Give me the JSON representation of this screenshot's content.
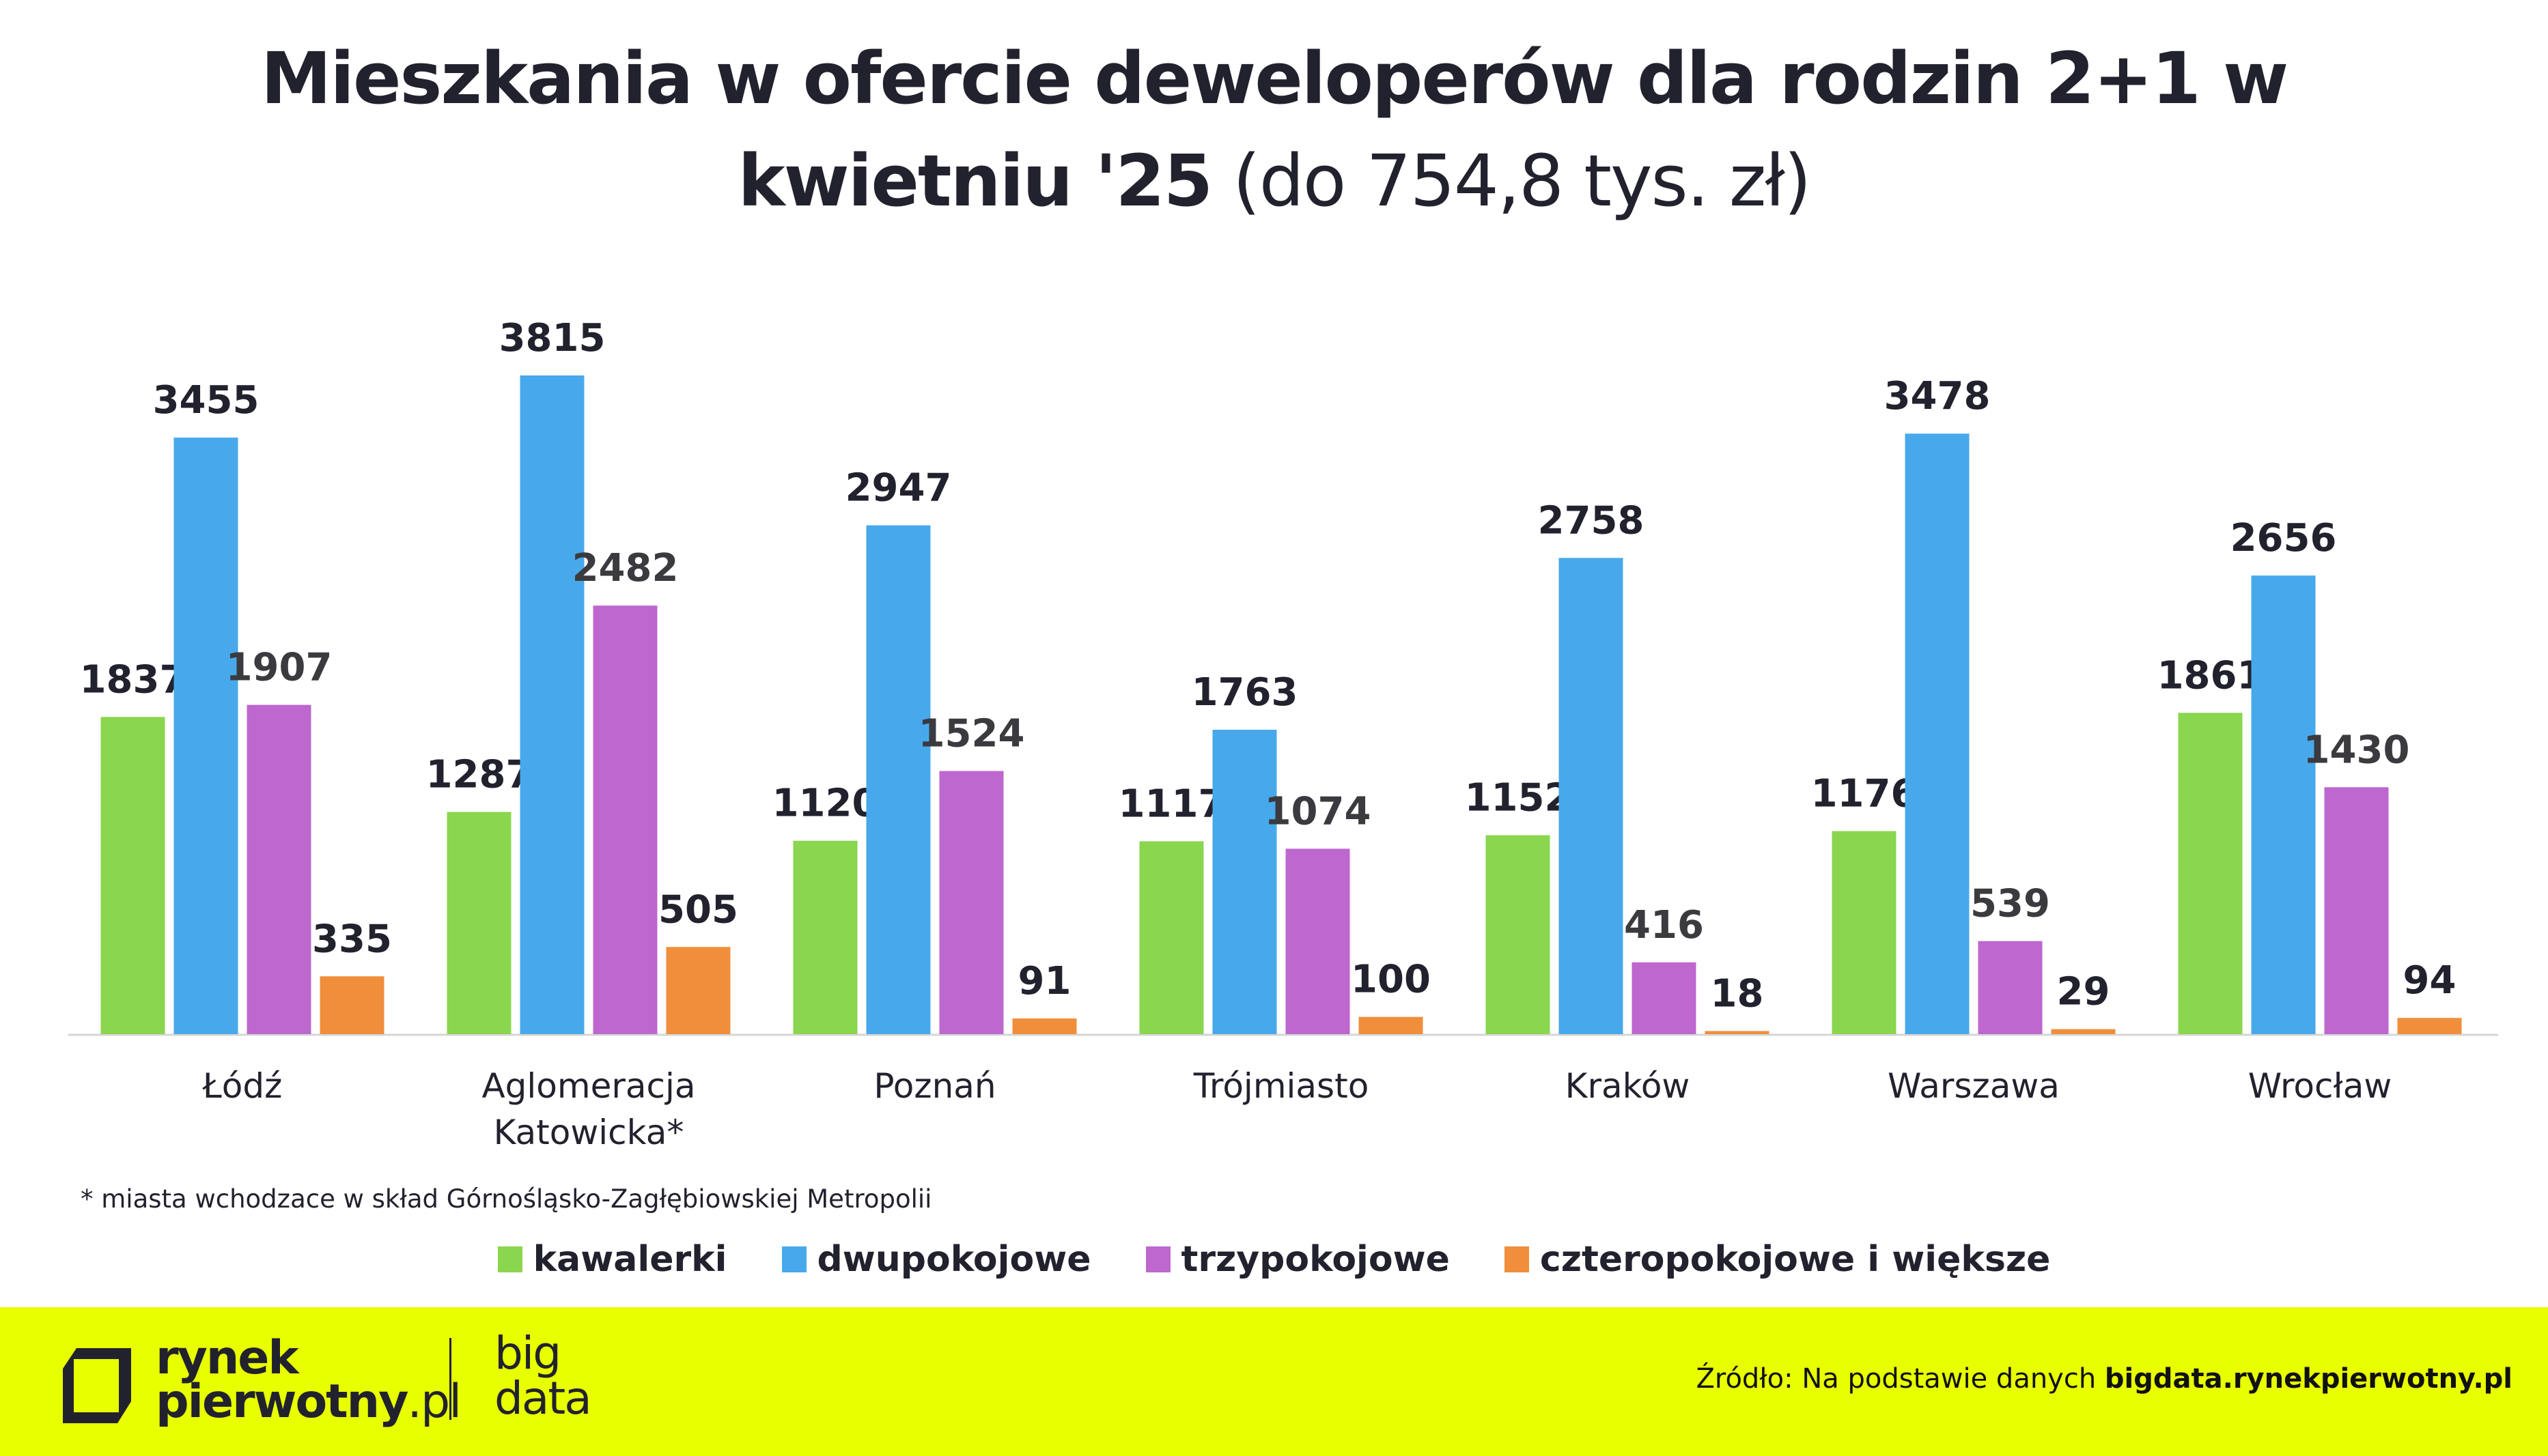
{
  "header": {
    "title_bold": "Mieszkania w ofercie deweloperów dla rodzin 2+1 w",
    "title_bold_2": "kwietniu '25",
    "title_normal": " (do 754,8  tys. zł)"
  },
  "chart_data": {
    "type": "bar",
    "title": "Mieszkania w ofercie deweloperów dla rodzin 2+1 w kwietniu '25 (do 754,8  tys. zł)",
    "xlabel": "",
    "ylabel": "",
    "ylim": [
      0,
      3815
    ],
    "grid": false,
    "legend_position": "bottom",
    "categories": [
      "Łódź",
      [
        "Aglomeracja",
        "Katowicka*"
      ],
      "Poznań",
      "Trójmiasto",
      "Kraków",
      "Warszawa",
      "Wrocław"
    ],
    "series": [
      {
        "name": "kawalerki",
        "color": "#8ad64e",
        "values": [
          1837,
          1287,
          1120,
          1117,
          1152,
          1176,
          1861
        ]
      },
      {
        "name": "dwupokojowe",
        "color": "#47a9eb",
        "values": [
          3455,
          3815,
          2947,
          1763,
          2758,
          3478,
          2656
        ]
      },
      {
        "name": "trzypokojowe",
        "color": "#bd67cf",
        "values": [
          1907,
          2482,
          1524,
          1074,
          416,
          539,
          1430
        ]
      },
      {
        "name": "czteropokojowe i większe",
        "color": "#f08e3c",
        "values": [
          335,
          505,
          91,
          100,
          18,
          29,
          94
        ]
      }
    ]
  },
  "footnote": "* miasta wchodzace w skład Górnośląsko-Zagłębiowskiej Metropolii",
  "footer": {
    "logo_line1": "rynek",
    "logo_line2": "pierwotny",
    "logo_suffix": ".pl",
    "bigdata_line1": "big",
    "bigdata_line2": "data",
    "source_prefix": "Źródło: Na podstawie danych ",
    "source_link": "bigdata.rynekpierwotny.pl",
    "background_color": "#e8ff00"
  }
}
